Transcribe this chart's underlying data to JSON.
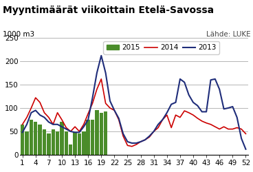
{
  "title": "Myyntimäärät viikoittain Etelä-Savossa",
  "ylabel": "1000 m3",
  "source": "Lähde: LUKE",
  "ylim": [
    0,
    250
  ],
  "yticks": [
    0,
    50,
    100,
    150,
    200,
    250
  ],
  "weeks": [
    1,
    2,
    3,
    4,
    5,
    6,
    7,
    8,
    9,
    10,
    11,
    12,
    13,
    14,
    15,
    16,
    17,
    18,
    19,
    20,
    21,
    22,
    23,
    24,
    25,
    26,
    27,
    28,
    29,
    30,
    31,
    32,
    33,
    34,
    35,
    36,
    37,
    38,
    39,
    40,
    41,
    42,
    43,
    44,
    45,
    46,
    47,
    48,
    49,
    50,
    51,
    52
  ],
  "xticks": [
    1,
    4,
    7,
    10,
    13,
    16,
    19,
    22,
    25,
    28,
    31,
    34,
    37,
    40,
    43,
    46,
    49,
    52
  ],
  "bar_2015": [
    65,
    50,
    75,
    70,
    65,
    55,
    45,
    55,
    50,
    70,
    50,
    22,
    48,
    45,
    50,
    75,
    75,
    95,
    90,
    92,
    null,
    null,
    null,
    null,
    null,
    null,
    null,
    null,
    null,
    null,
    null,
    null,
    null,
    null,
    null,
    null,
    null,
    null,
    null,
    null,
    null,
    null,
    null,
    null,
    null,
    null,
    null,
    null,
    null,
    null,
    null,
    null
  ],
  "line_2014": [
    65,
    80,
    100,
    122,
    112,
    90,
    80,
    65,
    90,
    75,
    58,
    50,
    60,
    50,
    65,
    88,
    110,
    140,
    162,
    110,
    100,
    95,
    75,
    40,
    20,
    18,
    22,
    28,
    32,
    38,
    50,
    58,
    75,
    85,
    58,
    85,
    80,
    94,
    90,
    85,
    78,
    72,
    68,
    65,
    60,
    55,
    60,
    55,
    55,
    58,
    55,
    45
  ],
  "line_2013": [
    48,
    65,
    90,
    95,
    85,
    80,
    70,
    65,
    65,
    60,
    55,
    50,
    48,
    48,
    60,
    75,
    122,
    175,
    212,
    175,
    115,
    95,
    78,
    45,
    28,
    25,
    25,
    28,
    32,
    40,
    50,
    65,
    75,
    90,
    108,
    112,
    162,
    155,
    128,
    112,
    105,
    92,
    92,
    160,
    162,
    140,
    98,
    100,
    103,
    80,
    35,
    12
  ],
  "bar_color": "#4a8c2a",
  "line_2014_color": "#cc0000",
  "line_2013_color": "#1f2d7a",
  "background_color": "#ffffff",
  "grid_color": "#999999",
  "title_fontsize": 10,
  "axis_fontsize": 7.5,
  "legend_fontsize": 7.5
}
